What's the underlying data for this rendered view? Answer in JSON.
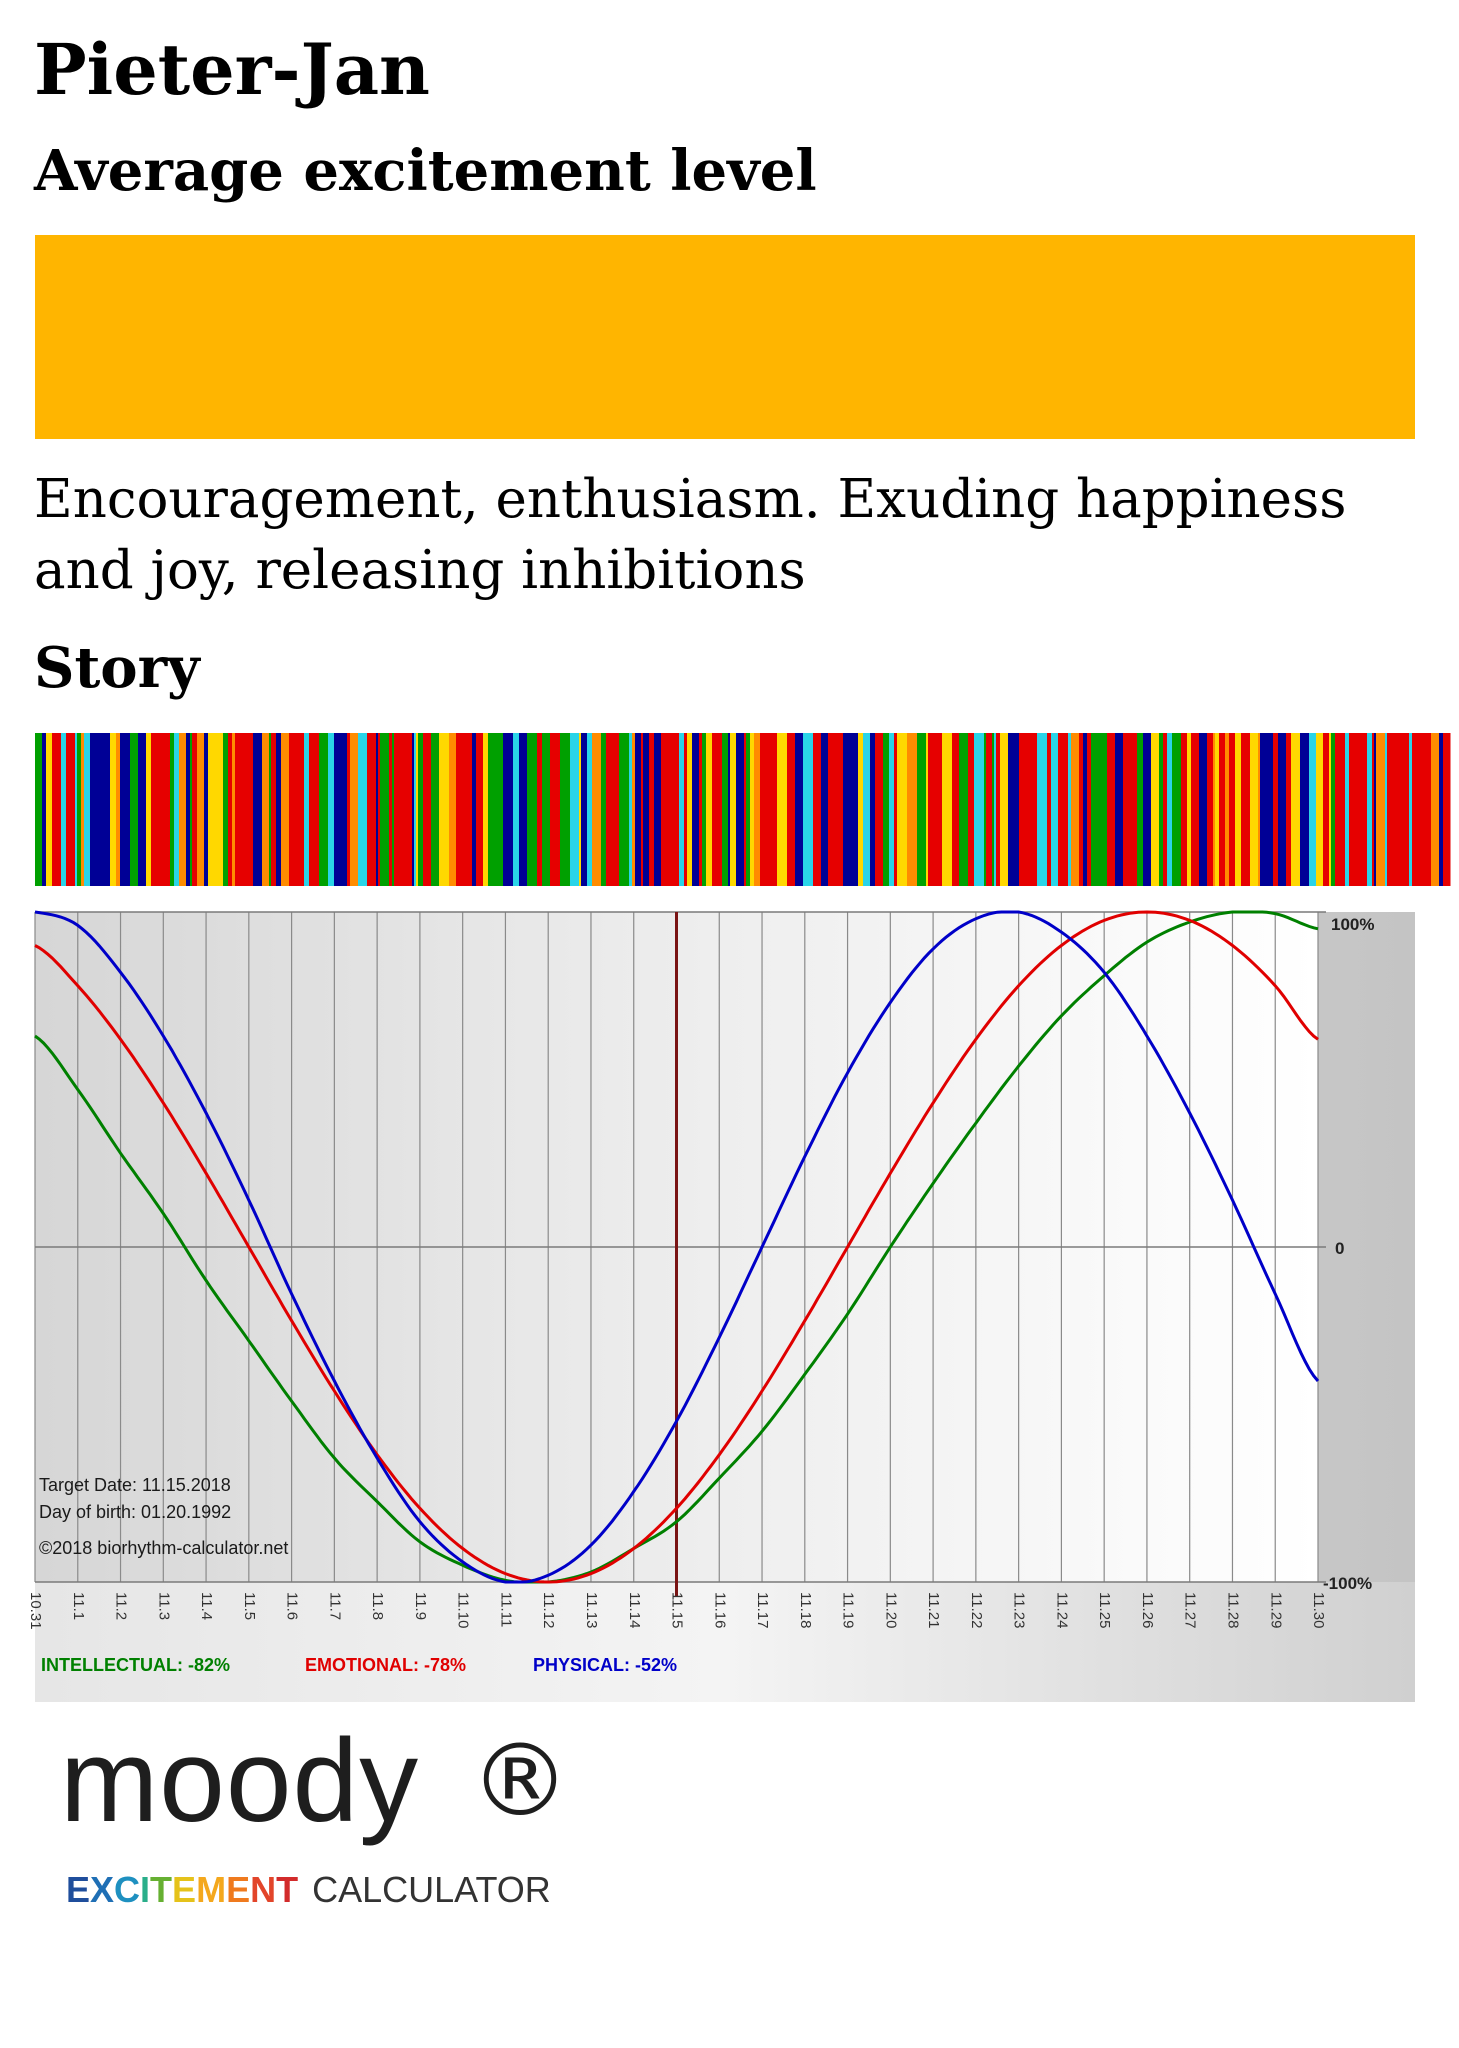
{
  "header": {
    "name": "Pieter-Jan",
    "subtitle": "Average excitement level"
  },
  "level_bar": {
    "color": "#FFB500"
  },
  "description": "Encouragement, enthusiasm. Exuding happiness and joy, releasing inhibitions",
  "story_heading": "Story",
  "stripe_palette": [
    "#E60000",
    "#000096",
    "#E60000",
    "#FFD800",
    "#00A000",
    "#2AD4E8",
    "#FF8C00",
    "#E60000",
    "#000096"
  ],
  "chart_data": {
    "type": "line",
    "x": [
      "10.31",
      "11.1",
      "11.2",
      "11.3",
      "11.4",
      "11.5",
      "11.6",
      "11.7",
      "11.8",
      "11.9",
      "11.10",
      "11.11",
      "11.12",
      "11.13",
      "11.14",
      "11.15",
      "11.16",
      "11.17",
      "11.18",
      "11.19",
      "11.20",
      "11.21",
      "11.22",
      "11.23",
      "11.24",
      "11.25",
      "11.26",
      "11.27",
      "11.28",
      "11.29",
      "11.30"
    ],
    "y_ticks": [
      "100%",
      "0",
      "-100%"
    ],
    "ylim": [
      -100,
      100
    ],
    "target_index": 15,
    "series": [
      {
        "key": "intellectual",
        "color": "#008000",
        "values": [
          63,
          47,
          28,
          10,
          -10,
          -28,
          -46,
          -63,
          -76,
          -88,
          -95,
          -99.5,
          -100,
          -97,
          -90,
          -82,
          -69,
          -55,
          -38,
          -20,
          0,
          19,
          37,
          54,
          69,
          81,
          91,
          97,
          100,
          99.5,
          95
        ]
      },
      {
        "key": "emotional",
        "color": "#E00000",
        "values": [
          90,
          78,
          62,
          43,
          22,
          0,
          -22,
          -43,
          -62,
          -78,
          -90,
          -97.5,
          -100,
          -97.5,
          -90,
          -78,
          -62,
          -43,
          -22,
          0,
          22,
          43,
          62,
          78,
          90,
          97.5,
          100,
          97.5,
          90,
          78,
          62
        ]
      },
      {
        "key": "physical",
        "color": "#0000C8",
        "values": [
          100,
          96,
          82,
          63,
          40,
          14,
          -14,
          -40,
          -63,
          -82,
          -94,
          -100,
          -98,
          -89,
          -73,
          -52,
          -27,
          0,
          27,
          52,
          73,
          89,
          98,
          100,
          94,
          82,
          63,
          40,
          14,
          -14,
          -40
        ]
      }
    ],
    "info": {
      "target_date": "Target Date: 11.15.2018",
      "birth": "Day of birth: 01.20.1992",
      "copyright": "©2018 biorhythm-calculator.net"
    },
    "legend": {
      "intellectual": "INTELLECTUAL: -82%",
      "emotional": "EMOTIONAL: -78%",
      "physical": "PHYSICAL: -52%"
    }
  },
  "logo": {
    "word": "moody",
    "reg": "®",
    "tag_excite": "EXCITEMENT",
    "tag_calc": "CALCULATOR",
    "excite_colors": [
      "#1F4E9C",
      "#1F6FB5",
      "#1E90C0",
      "#2AAE8A",
      "#66B032",
      "#E5C21A",
      "#F4A81D",
      "#EF7A1E",
      "#E2452A",
      "#D22B2B"
    ]
  }
}
